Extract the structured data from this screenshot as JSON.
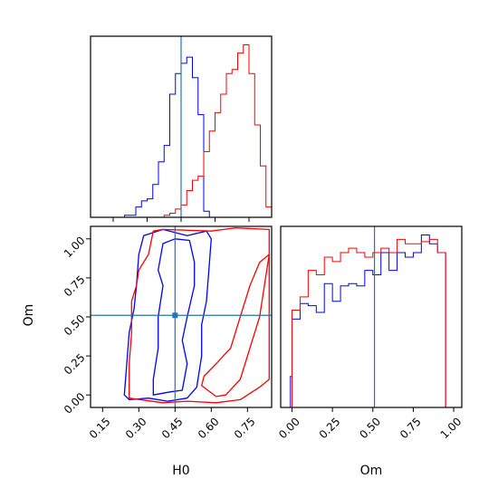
{
  "chart_data": {
    "type": "corner",
    "params": [
      "H0",
      "Om"
    ],
    "truths": {
      "H0": 0.45,
      "Om": 0.51
    },
    "truth_color": "#1f77b4",
    "series_colors": {
      "blue": "#0000ff",
      "red": "#ff0000"
    },
    "panels": [
      {
        "id": "hist-h0",
        "type": "step-histogram",
        "xlim": [
          0.05,
          0.85
        ],
        "x_ticks": [
          0.15,
          0.3,
          0.45,
          0.6,
          0.75
        ],
        "xlabel": "",
        "bin_edges": [
          0.05,
          0.075,
          0.1,
          0.125,
          0.15,
          0.175,
          0.2,
          0.225,
          0.25,
          0.275,
          0.3,
          0.325,
          0.35,
          0.375,
          0.4,
          0.425,
          0.45,
          0.475,
          0.5,
          0.525,
          0.55,
          0.575,
          0.6,
          0.625,
          0.65,
          0.675,
          0.7,
          0.725,
          0.75,
          0.775,
          0.8,
          0.825,
          0.85
        ],
        "series": [
          {
            "color": "blue",
            "counts": [
              0,
              0,
              0,
              0,
              0,
              0,
              1,
              1,
              5,
              8,
              9,
              16,
              27,
              35,
              60,
              70,
              75,
              78,
              68,
              50,
              3,
              0,
              0,
              0,
              0,
              0,
              0,
              0,
              0,
              0,
              0,
              0
            ]
          },
          {
            "color": "red",
            "counts": [
              0,
              0,
              0,
              0,
              0,
              0,
              0,
              0,
              0,
              0,
              0,
              0,
              0,
              1,
              2,
              4,
              6,
              13,
              18,
              20,
              32,
              42,
              51,
              60,
              70,
              72,
              80,
              84,
              70,
              45,
              25,
              5
            ]
          }
        ]
      },
      {
        "id": "hist-om",
        "type": "step-histogram",
        "xlim": [
          -0.07,
          1.05
        ],
        "x_ticks": [
          0.0,
          0.25,
          0.5,
          0.75,
          1.0
        ],
        "xlabel": "Om",
        "bin_edges": [
          -0.07,
          -0.01,
          0.0,
          0.05,
          0.1,
          0.15,
          0.2,
          0.25,
          0.3,
          0.35,
          0.4,
          0.45,
          0.5,
          0.55,
          0.6,
          0.65,
          0.7,
          0.75,
          0.8,
          0.85,
          0.9,
          0.95,
          1.0,
          1.05
        ],
        "series": [
          {
            "color": "blue",
            "counts": [
              0,
              14,
              40,
              47,
              46,
              43,
              56,
              48,
              55,
              56,
              55,
              62,
              60,
              70,
              62,
              70,
              68,
              70,
              78,
              74,
              70,
              0,
              0
            ]
          },
          {
            "color": "red",
            "counts": [
              0,
              0,
              44,
              50,
              62,
              60,
              68,
              66,
              70,
              72,
              70,
              68,
              70,
              72,
              70,
              76,
              74,
              74,
              75,
              76,
              70,
              0,
              0
            ]
          }
        ]
      },
      {
        "id": "contour-h0-om",
        "type": "contour",
        "xlim": [
          0.1,
          0.85
        ],
        "ylim": [
          -0.08,
          1.08
        ],
        "x_ticks": [
          0.15,
          0.3,
          0.45,
          0.6,
          0.75
        ],
        "y_ticks": [
          0.0,
          0.25,
          0.5,
          0.75,
          1.0
        ],
        "xlabel": "H0",
        "ylabel": "Om",
        "series": [
          {
            "color": "blue",
            "contours": [
              [
                [
                  0.24,
                  0.0
                ],
                [
                  0.26,
                  -0.03
                ],
                [
                  0.34,
                  -0.02
                ],
                [
                  0.42,
                  -0.04
                ],
                [
                  0.5,
                  -0.02
                ],
                [
                  0.54,
                  0.05
                ],
                [
                  0.56,
                  0.25
                ],
                [
                  0.56,
                  0.45
                ],
                [
                  0.58,
                  0.6
                ],
                [
                  0.59,
                  0.8
                ],
                [
                  0.6,
                  1.0
                ],
                [
                  0.58,
                  1.05
                ],
                [
                  0.5,
                  1.02
                ],
                [
                  0.4,
                  1.06
                ],
                [
                  0.32,
                  1.02
                ],
                [
                  0.3,
                  0.9
                ],
                [
                  0.29,
                  0.7
                ],
                [
                  0.28,
                  0.55
                ],
                [
                  0.26,
                  0.4
                ],
                [
                  0.25,
                  0.2
                ],
                [
                  0.24,
                  0.0
                ]
              ],
              [
                [
                  0.36,
                  0.0
                ],
                [
                  0.43,
                  0.02
                ],
                [
                  0.48,
                  0.03
                ],
                [
                  0.5,
                  0.2
                ],
                [
                  0.48,
                  0.35
                ],
                [
                  0.5,
                  0.5
                ],
                [
                  0.53,
                  0.7
                ],
                [
                  0.53,
                  0.85
                ],
                [
                  0.51,
                  0.99
                ],
                [
                  0.45,
                  1.0
                ],
                [
                  0.4,
                  0.97
                ],
                [
                  0.38,
                  0.8
                ],
                [
                  0.4,
                  0.7
                ],
                [
                  0.38,
                  0.5
                ],
                [
                  0.38,
                  0.3
                ],
                [
                  0.36,
                  0.1
                ],
                [
                  0.36,
                  0.0
                ]
              ]
            ]
          },
          {
            "color": "red",
            "contours": [
              [
                [
                  0.26,
                  -0.02
                ],
                [
                  0.4,
                  -0.05
                ],
                [
                  0.5,
                  -0.04
                ],
                [
                  0.62,
                  -0.05
                ],
                [
                  0.72,
                  -0.03
                ],
                [
                  0.8,
                  0.05
                ],
                [
                  0.84,
                  0.1
                ],
                [
                  0.84,
                  0.7
                ],
                [
                  0.84,
                  1.06
                ],
                [
                  0.7,
                  1.07
                ],
                [
                  0.6,
                  1.05
                ],
                [
                  0.4,
                  1.06
                ],
                [
                  0.36,
                  1.05
                ],
                [
                  0.34,
                  0.9
                ],
                [
                  0.3,
                  0.8
                ],
                [
                  0.29,
                  0.7
                ],
                [
                  0.27,
                  0.6
                ],
                [
                  0.27,
                  0.4
                ],
                [
                  0.26,
                  0.2
                ],
                [
                  0.26,
                  -0.02
                ]
              ],
              [
                [
                  0.56,
                  0.06
                ],
                [
                  0.62,
                  -0.01
                ],
                [
                  0.66,
                  0.0
                ],
                [
                  0.72,
                  0.1
                ],
                [
                  0.76,
                  0.3
                ],
                [
                  0.8,
                  0.5
                ],
                [
                  0.82,
                  0.7
                ],
                [
                  0.84,
                  0.9
                ],
                [
                  0.8,
                  0.85
                ],
                [
                  0.76,
                  0.7
                ],
                [
                  0.72,
                  0.5
                ],
                [
                  0.68,
                  0.3
                ],
                [
                  0.62,
                  0.2
                ],
                [
                  0.57,
                  0.12
                ],
                [
                  0.56,
                  0.06
                ]
              ]
            ]
          }
        ]
      }
    ]
  }
}
